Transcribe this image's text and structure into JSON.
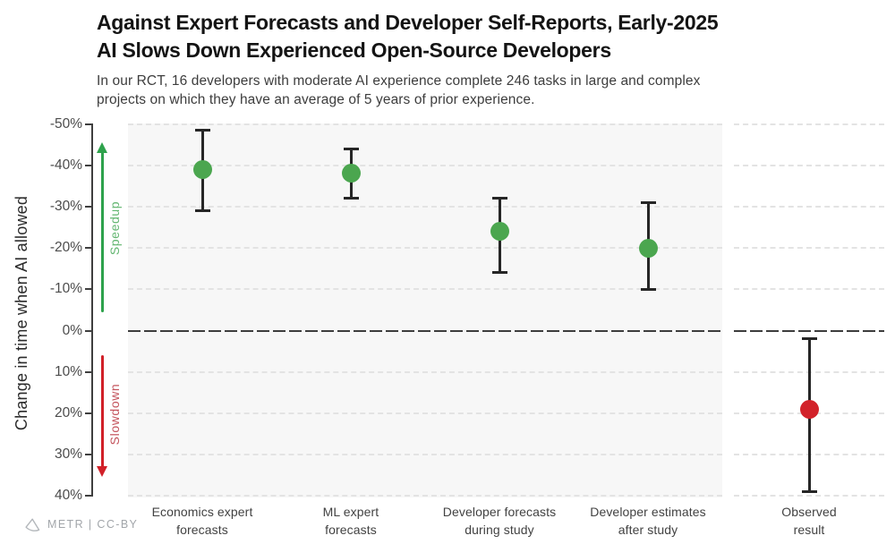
{
  "header": {
    "title_line1": "Against Expert Forecasts and Developer Self-Reports, Early-2025",
    "title_line2": "AI Slows Down Experienced Open-Source Developers",
    "subtitle_line1": "In our RCT, 16 developers with moderate AI experience complete 246 tasks in large and complex",
    "subtitle_line2": "projects on which they have an average of 5 years of prior experience."
  },
  "chart_data": {
    "type": "scatter",
    "title": "Against Expert Forecasts and Developer Self-Reports, Early-2025 AI Slows Down Experienced Open-Source Developers",
    "subtitle": "In our RCT, 16 developers with moderate AI experience complete 246 tasks in large and complex projects on which they have an average of 5 years of prior experience.",
    "ylabel": "Change in time when AI allowed",
    "y_unit": "%",
    "ylim": [
      -50,
      40
    ],
    "y_ticks": [
      -50,
      -40,
      -30,
      -20,
      -10,
      0,
      10,
      20,
      30,
      40
    ],
    "grid": "horizontal-dashed",
    "zero_reference_line": true,
    "legend": "none",
    "annotations": {
      "speedup": {
        "label": "Speedup",
        "direction": "up",
        "arrow_color": "#2ea24c",
        "label_color": "#63b671"
      },
      "slowdown": {
        "label": "Slowdown",
        "direction": "down",
        "arrow_color": "#d12028",
        "label_color": "#c4555e"
      }
    },
    "points": [
      {
        "category": "Economics expert forecasts",
        "category_lines": [
          "Economics expert",
          "forecasts"
        ],
        "value_pct": -39,
        "ci_low_pct": -48.5,
        "ci_high_pct": -29,
        "color": "#4ba64f",
        "panel": "main"
      },
      {
        "category": "ML expert forecasts",
        "category_lines": [
          "ML expert",
          "forecasts"
        ],
        "value_pct": -38,
        "ci_low_pct": -44,
        "ci_high_pct": -32,
        "color": "#4ba64f",
        "panel": "main"
      },
      {
        "category": "Developer forecasts during study",
        "category_lines": [
          "Developer forecasts",
          "during study"
        ],
        "value_pct": -24,
        "ci_low_pct": -32,
        "ci_high_pct": -14,
        "color": "#4ba64f",
        "panel": "main"
      },
      {
        "category": "Developer estimates after study",
        "category_lines": [
          "Developer estimates",
          "after study"
        ],
        "value_pct": -20,
        "ci_low_pct": -31,
        "ci_high_pct": -10,
        "color": "#4ba64f",
        "panel": "main"
      },
      {
        "category": "Observed result",
        "category_lines": [
          "Observed",
          "result"
        ],
        "value_pct": 19,
        "ci_low_pct": 2,
        "ci_high_pct": 39,
        "color": "#d2222a",
        "panel": "observed"
      }
    ]
  },
  "footer": {
    "attribution": "METR | CC-BY",
    "logo_icon": "metr-triangle-icon"
  },
  "colors": {
    "title_text": "#141414",
    "subtitle_text": "#3d3d3d",
    "axis": "#3f3f3f",
    "tick_label": "#4c4c4c",
    "panel_background": "#f7f7f7",
    "gridline": "#e3e3e3",
    "zero_line": "#3d3d3d",
    "error_bar": "#262626",
    "forecast_green": "#4ba64f",
    "observed_red": "#d2222a",
    "attribution_text": "#a2a6aa"
  }
}
